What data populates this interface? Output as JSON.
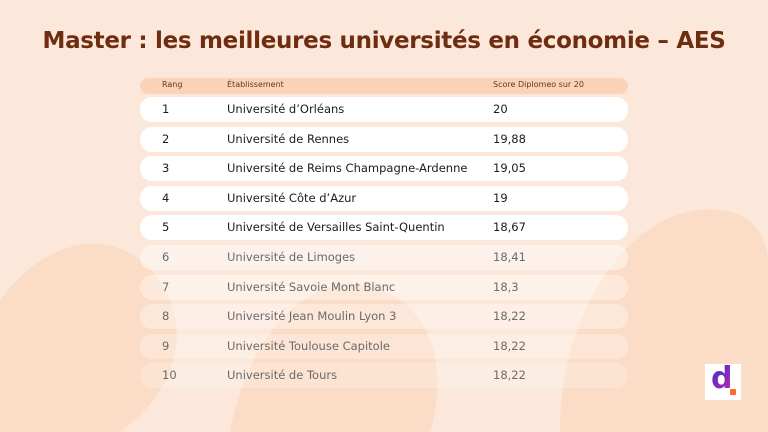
{
  "header": {
    "title": "Master : les meilleures universités en économie – AES"
  },
  "table": {
    "columns": [
      "Rang",
      "Établissement",
      "Score Diplomeo sur 20"
    ],
    "rows": [
      [
        "1",
        "Université d’Orléans",
        "20"
      ],
      [
        "2",
        "Université de Rennes",
        "19,88"
      ],
      [
        "3",
        "Université de Reims Champagne-Ardenne",
        "19,05"
      ],
      [
        "4",
        "Université Côte d’Azur",
        "19"
      ],
      [
        "5",
        "Université de Versailles Saint-Quentin",
        "18,67"
      ],
      [
        "6",
        "Université de Limoges",
        "18,41"
      ],
      [
        "7",
        "Université Savoie Mont Blanc",
        "18,3"
      ],
      [
        "8",
        "Université Jean Moulin Lyon 3",
        "18,22"
      ],
      [
        "9",
        "Université Toulouse Capitole",
        "18,22"
      ],
      [
        "10",
        "Université de Tours",
        "18,22"
      ]
    ]
  },
  "logo": "d"
}
